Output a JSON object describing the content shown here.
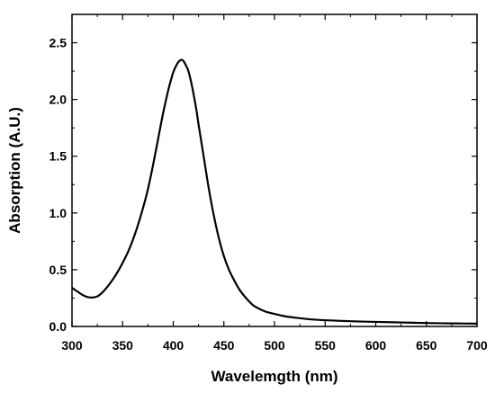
{
  "chart_data": {
    "type": "line",
    "title": "",
    "xlabel": "Wavelemgth (nm)",
    "ylabel": "Absorption (A.U.)",
    "xlim": [
      300,
      700
    ],
    "ylim": [
      0,
      2.75
    ],
    "xticks": [
      300,
      350,
      400,
      450,
      500,
      550,
      600,
      650,
      700
    ],
    "xtick_labels": [
      "300",
      "350",
      "400",
      "450",
      "500",
      "550",
      "600",
      "650",
      "700"
    ],
    "yticks": [
      0,
      0.5,
      1.0,
      1.5,
      2.0,
      2.5
    ],
    "ytick_labels": [
      "0.0",
      "0.5",
      "1.0",
      "1.5",
      "2.0",
      "2.5"
    ],
    "grid": false,
    "legend": "none",
    "line_color": "#000000",
    "series": [
      {
        "x": [
          300,
          305,
          310,
          315,
          320,
          325,
          330,
          335,
          340,
          345,
          350,
          355,
          360,
          365,
          370,
          375,
          380,
          385,
          390,
          395,
          398,
          400,
          403,
          405,
          408,
          410,
          412,
          415,
          418,
          420,
          423,
          425,
          430,
          435,
          440,
          445,
          450,
          455,
          460,
          465,
          470,
          475,
          480,
          490,
          500,
          510,
          520,
          530,
          540,
          550,
          575,
          600,
          625,
          650,
          675,
          700
        ],
        "y": [
          0.34,
          0.31,
          0.28,
          0.26,
          0.255,
          0.265,
          0.3,
          0.35,
          0.41,
          0.48,
          0.56,
          0.65,
          0.76,
          0.89,
          1.04,
          1.21,
          1.42,
          1.65,
          1.88,
          2.08,
          2.18,
          2.24,
          2.3,
          2.33,
          2.35,
          2.34,
          2.31,
          2.25,
          2.14,
          2.05,
          1.9,
          1.78,
          1.5,
          1.22,
          0.98,
          0.78,
          0.62,
          0.5,
          0.41,
          0.33,
          0.27,
          0.22,
          0.18,
          0.135,
          0.11,
          0.09,
          0.078,
          0.068,
          0.06,
          0.055,
          0.046,
          0.04,
          0.035,
          0.03,
          0.027,
          0.025
        ]
      }
    ]
  }
}
